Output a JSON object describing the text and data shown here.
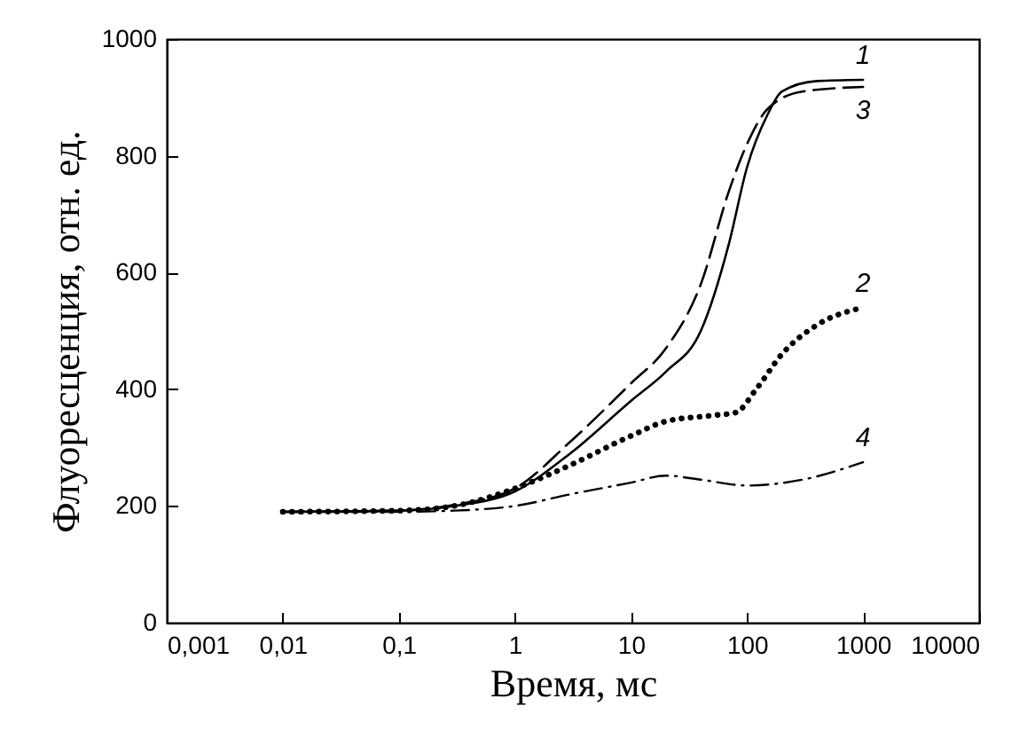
{
  "chart_data": {
    "type": "line",
    "xlabel": "Время, мс",
    "ylabel": "Флуоресценция, отн. ед.",
    "log": "x",
    "grid": false,
    "marker": "none",
    "xlim": [
      0.001,
      10000
    ],
    "ylim": [
      0,
      1000
    ],
    "xticks": [
      {
        "value": 0.001,
        "label": "0,001"
      },
      {
        "value": 0.01,
        "label": "0,01"
      },
      {
        "value": 0.1,
        "label": "0,1"
      },
      1,
      10,
      100,
      1000,
      10000
    ],
    "yticks": [
      0,
      200,
      400,
      600,
      800,
      1000
    ],
    "series": [
      {
        "name": "1",
        "color": "#000000",
        "line_style": "solid",
        "x": [
          0.01,
          0.1,
          0.3,
          1,
          3,
          10,
          20,
          40,
          70,
          100,
          150,
          200,
          400,
          1000
        ],
        "values": [
          190,
          192,
          200,
          225,
          290,
          380,
          430,
          500,
          650,
          780,
          870,
          910,
          928,
          930
        ]
      },
      {
        "name": "2",
        "color": "#000000",
        "line_style": "dotted",
        "x": [
          0.01,
          0.1,
          0.3,
          1,
          3,
          10,
          20,
          50,
          80,
          120,
          200,
          400,
          1000
        ],
        "values": [
          190,
          192,
          200,
          230,
          270,
          320,
          345,
          355,
          360,
          400,
          460,
          510,
          540
        ]
      },
      {
        "name": "3",
        "color": "#000000",
        "line_style": "dashed",
        "x": [
          0.01,
          0.1,
          0.3,
          1,
          3,
          10,
          20,
          40,
          70,
          100,
          150,
          300,
          1000
        ],
        "values": [
          190,
          192,
          202,
          230,
          310,
          410,
          470,
          580,
          740,
          820,
          880,
          910,
          918
        ]
      },
      {
        "name": "4",
        "color": "#000000",
        "line_style": "dashdot",
        "x": [
          0.01,
          0.1,
          0.3,
          1,
          3,
          10,
          20,
          40,
          100,
          300,
          1000
        ],
        "values": [
          190,
          190,
          192,
          200,
          220,
          240,
          252,
          245,
          235,
          245,
          275
        ]
      }
    ]
  }
}
